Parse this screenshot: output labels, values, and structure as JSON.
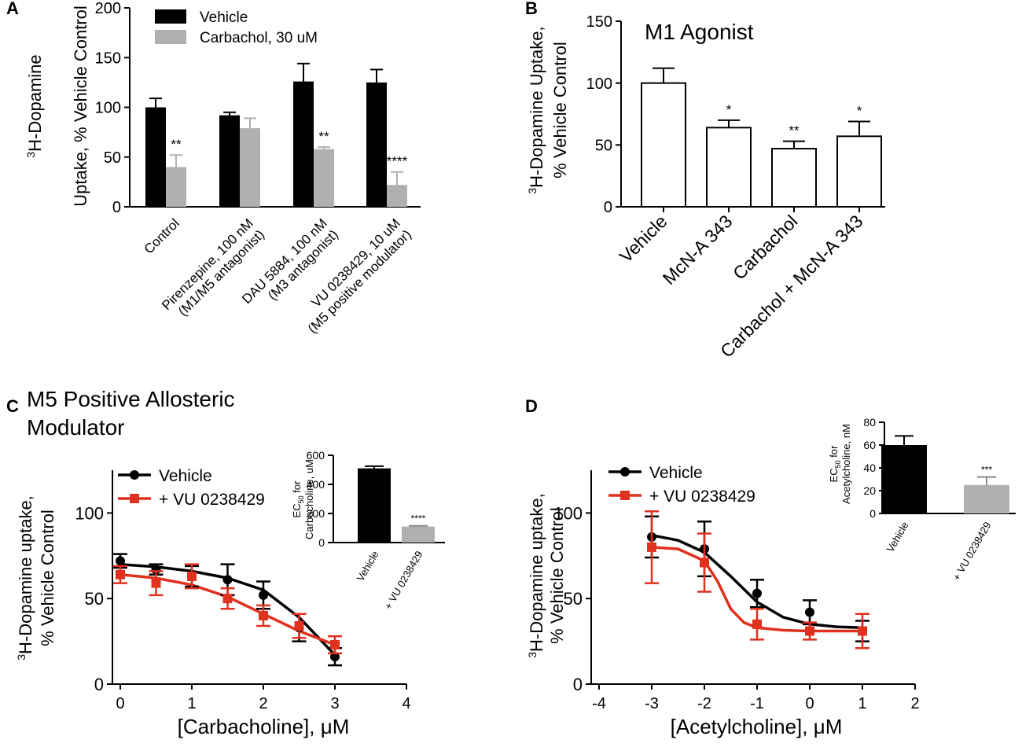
{
  "chart_data": [
    {
      "panel": "A",
      "type": "bar",
      "title": "",
      "ylabel": "Uptake, % Vehicle Control",
      "ylabel_prefix": "H-Dopamine",
      "ylabel_sup": "3",
      "ylim": [
        0,
        200
      ],
      "yticks": [
        0,
        50,
        100,
        150,
        200
      ],
      "categories": [
        [
          "Control"
        ],
        [
          "Pirenzepine, 100 nM",
          "(M1/M5 antagonist)"
        ],
        [
          "DAU 5884, 100 nM",
          "(M3 antagonist)"
        ],
        [
          "VU 0238429, 10 uM",
          "(M5 positive modulator)"
        ]
      ],
      "series": [
        {
          "name": "Vehicle",
          "color": "#000000",
          "values": [
            100,
            92,
            126,
            125
          ],
          "errors": [
            9,
            3,
            18,
            13
          ],
          "annotations": [
            "",
            "",
            "",
            ""
          ]
        },
        {
          "name": "Carbachol, 30 uM",
          "color": "#b0b0b0",
          "values": [
            40,
            79,
            58,
            22
          ],
          "errors": [
            12,
            10,
            2,
            13
          ],
          "annotations": [
            "**",
            "",
            "**",
            "****"
          ]
        }
      ]
    },
    {
      "panel": "B",
      "type": "bar",
      "title": "M1 Agonist",
      "ylabel": "% Vehicle Control",
      "ylabel_prefix": "H-Dopamine Uptake,",
      "ylabel_sup": "3",
      "ylim": [
        0,
        150
      ],
      "yticks": [
        0,
        50,
        100,
        150
      ],
      "categories": [
        "Vehicle",
        "McN-A 343",
        "Carbachol",
        "Carbachol + McN-A 343"
      ],
      "values": [
        100,
        64,
        47,
        57
      ],
      "errors": [
        12,
        6,
        6,
        12
      ],
      "annotations": [
        "",
        "*",
        "**",
        "*"
      ],
      "bar_color": "#ffffff"
    },
    {
      "panel": "C",
      "type": "line",
      "title_lines": [
        "M5 Positive Allosteric",
        "Modulator"
      ],
      "xlabel": "[Carbacholine], μM",
      "ylabel": "% Vehicle Control",
      "ylabel_prefix": "H-Dopamine uptake,",
      "ylabel_sup": "3",
      "xlim": [
        0,
        4
      ],
      "ylim": [
        0,
        125
      ],
      "xticks": [
        0,
        1,
        2,
        3,
        4
      ],
      "yticks": [
        0,
        50,
        100
      ],
      "series": [
        {
          "name": "Vehicle",
          "color": "#000000",
          "marker": "circle",
          "x": [
            0,
            0.5,
            1,
            1.5,
            2,
            2.5,
            3
          ],
          "y": [
            72,
            67,
            63,
            61,
            52,
            33,
            16
          ],
          "errors": [
            4,
            3,
            6,
            9,
            8,
            8,
            5
          ],
          "fit_curve": [
            [
              0,
              70
            ],
            [
              0.5,
              68.5
            ],
            [
              1,
              66
            ],
            [
              1.5,
              62
            ],
            [
              2,
              55
            ],
            [
              2.5,
              39
            ],
            [
              3,
              17
            ]
          ]
        },
        {
          "name": "+ VU 0238429",
          "color": "#e0301e",
          "marker": "square",
          "x": [
            0,
            0.5,
            1,
            1.5,
            2,
            2.5,
            3
          ],
          "y": [
            64,
            59,
            63,
            50,
            40,
            34,
            23
          ],
          "errors": [
            5,
            7,
            7,
            6,
            6,
            7,
            5
          ],
          "fit_curve": [
            [
              0,
              64
            ],
            [
              0.5,
              62
            ],
            [
              1,
              58
            ],
            [
              1.5,
              51
            ],
            [
              2,
              41
            ],
            [
              2.5,
              31
            ],
            [
              3,
              23
            ]
          ]
        }
      ],
      "inset": {
        "type": "bar",
        "ylabel_lines": [
          "EC50 for",
          "Carbacholine, uM"
        ],
        "ylim": [
          0,
          600
        ],
        "yticks": [
          0,
          200,
          400,
          600
        ],
        "categories": [
          "Vehicle",
          "+ VU 0238429"
        ],
        "values": [
          510,
          110
        ],
        "errors": [
          15,
          5
        ],
        "colors": [
          "#000000",
          "#b0b0b0"
        ],
        "annotations": [
          "",
          "****"
        ]
      }
    },
    {
      "panel": "D",
      "type": "line",
      "xlabel": "[Acetylcholine], μM",
      "ylabel": "% Vehicle Control",
      "ylabel_prefix": "H-Dopamine uptake,",
      "ylabel_sup": "3",
      "xlim": [
        -4,
        2
      ],
      "ylim": [
        0,
        125
      ],
      "xticks": [
        -4,
        -3,
        -2,
        -1,
        0,
        1,
        2
      ],
      "yticks": [
        0,
        50,
        100
      ],
      "series": [
        {
          "name": "Vehicle",
          "color": "#000000",
          "marker": "circle",
          "x": [
            -3,
            -2,
            -1,
            0,
            1
          ],
          "y": [
            86,
            79,
            53,
            42,
            31
          ],
          "errors": [
            12,
            16,
            8,
            7,
            6
          ],
          "fit_curve": [
            [
              -3,
              87
            ],
            [
              -2.5,
              84
            ],
            [
              -2,
              77
            ],
            [
              -1.5,
              63
            ],
            [
              -1,
              48
            ],
            [
              -0.5,
              39
            ],
            [
              0,
              35
            ],
            [
              0.5,
              33.5
            ],
            [
              1,
              33
            ]
          ]
        },
        {
          "name": "+ VU 0238429",
          "color": "#e0301e",
          "marker": "square",
          "x": [
            -3,
            -2,
            -1,
            0,
            1
          ],
          "y": [
            80,
            71,
            35,
            31,
            31
          ],
          "errors": [
            21,
            17,
            9,
            5,
            10
          ],
          "fit_curve": [
            [
              -3,
              80
            ],
            [
              -2.5,
              79
            ],
            [
              -2,
              72
            ],
            [
              -1.75,
              60
            ],
            [
              -1.5,
              44
            ],
            [
              -1.25,
              36
            ],
            [
              -1,
              33
            ],
            [
              -0.5,
              31.5
            ],
            [
              0,
              31
            ],
            [
              1,
              31
            ]
          ]
        }
      ],
      "inset": {
        "type": "bar",
        "ylabel_lines": [
          "EC50 for",
          "Acetylcholine, nM"
        ],
        "ylim": [
          0,
          80
        ],
        "yticks": [
          0,
          20,
          40,
          60,
          80
        ],
        "categories": [
          "Vehicle",
          "+ VU 0238429"
        ],
        "values": [
          60,
          25
        ],
        "errors": [
          8,
          7
        ],
        "colors": [
          "#000000",
          "#b0b0b0"
        ],
        "annotations": [
          "",
          "***"
        ]
      }
    }
  ]
}
